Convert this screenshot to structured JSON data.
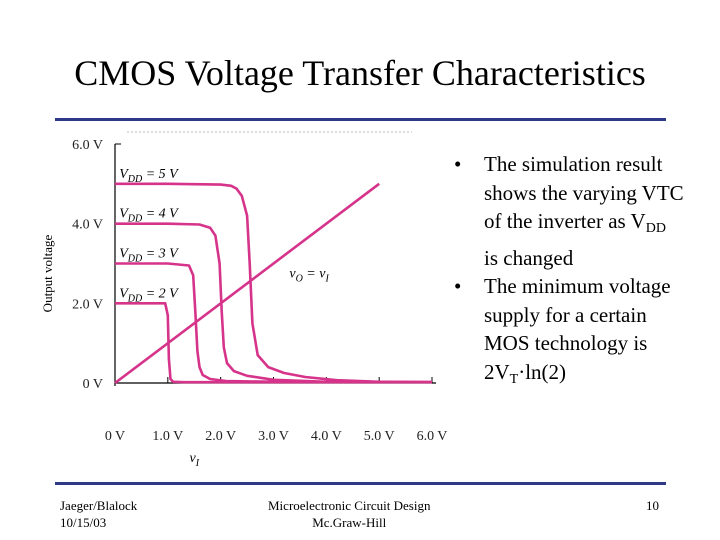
{
  "slide": {
    "title": "CMOS Voltage Transfer Characteristics",
    "bullets": [
      {
        "pre": "The simulation result shows the varying VTC of the inverter as V",
        "sub": "DD",
        "post": " is changed"
      },
      {
        "pre": "The minimum voltage supply for a certain MOS technology is 2V",
        "sub": "T",
        "post": "·ln(2)"
      }
    ],
    "footer": {
      "author": "Jaeger/Blalock",
      "date": "10/15/03",
      "book": "Microelectronic Circuit Design",
      "publisher": "Mc.Graw-Hill",
      "page": "10"
    }
  },
  "chart_data": {
    "type": "line",
    "xlabel": "v_I",
    "ylabel": "Output voltage",
    "xlim": [
      0,
      6
    ],
    "ylim": [
      0,
      6
    ],
    "x_ticks": [
      "0 V",
      "1.0 V",
      "2.0 V",
      "3.0 V",
      "4.0 V",
      "5.0 V",
      "6.0 V"
    ],
    "y_ticks": [
      "0 V",
      "2.0 V",
      "4.0 V",
      "6.0 V"
    ],
    "line_color": "#d6338b",
    "series": [
      {
        "name": "V_DD = 5 V",
        "label_base": "V",
        "label_sub": "DD",
        "label_rest": " = 5 V",
        "label_y": 5.2,
        "x": [
          0,
          1.0,
          2.0,
          2.2,
          2.3,
          2.4,
          2.5,
          2.55,
          2.6,
          2.7,
          2.9,
          3.2,
          3.6,
          4.2,
          5.0,
          6.0
        ],
        "y": [
          5.0,
          5.0,
          4.98,
          4.95,
          4.88,
          4.7,
          4.2,
          3.0,
          1.5,
          0.7,
          0.4,
          0.25,
          0.15,
          0.07,
          0.03,
          0.02
        ]
      },
      {
        "name": "V_DD = 4 V",
        "label_base": "V",
        "label_sub": "DD",
        "label_rest": " = 4 V",
        "label_y": 4.2,
        "x": [
          0,
          1.0,
          1.6,
          1.8,
          1.9,
          1.98,
          2.02,
          2.06,
          2.12,
          2.25,
          2.5,
          3.0,
          4.0,
          6.0
        ],
        "y": [
          4.0,
          4.0,
          3.98,
          3.9,
          3.7,
          3.0,
          1.8,
          0.9,
          0.5,
          0.3,
          0.18,
          0.08,
          0.03,
          0.02
        ]
      },
      {
        "name": "V_DD = 3 V",
        "label_base": "V",
        "label_sub": "DD",
        "label_rest": " = 3 V",
        "label_y": 3.2,
        "x": [
          0,
          1.0,
          1.4,
          1.48,
          1.52,
          1.56,
          1.6,
          1.66,
          1.8,
          2.1,
          3.0,
          6.0
        ],
        "y": [
          3.0,
          3.0,
          2.95,
          2.7,
          1.8,
          0.8,
          0.4,
          0.2,
          0.1,
          0.05,
          0.03,
          0.02
        ]
      },
      {
        "name": "V_DD = 2 V",
        "label_base": "V",
        "label_sub": "DD",
        "label_rest": " = 2 V",
        "label_y": 2.2,
        "x": [
          0,
          0.95,
          1.0,
          1.02,
          1.05,
          1.1,
          1.3,
          6.0
        ],
        "y": [
          2.0,
          2.0,
          1.7,
          0.6,
          0.1,
          0.03,
          0.02,
          0.02
        ]
      },
      {
        "name": "v_O = v_I",
        "label_base": "v",
        "label_sub": "O",
        "label_rest": " = v",
        "label_sub2": "I",
        "x": [
          0,
          5.0
        ],
        "y": [
          0,
          5.0
        ]
      }
    ]
  }
}
